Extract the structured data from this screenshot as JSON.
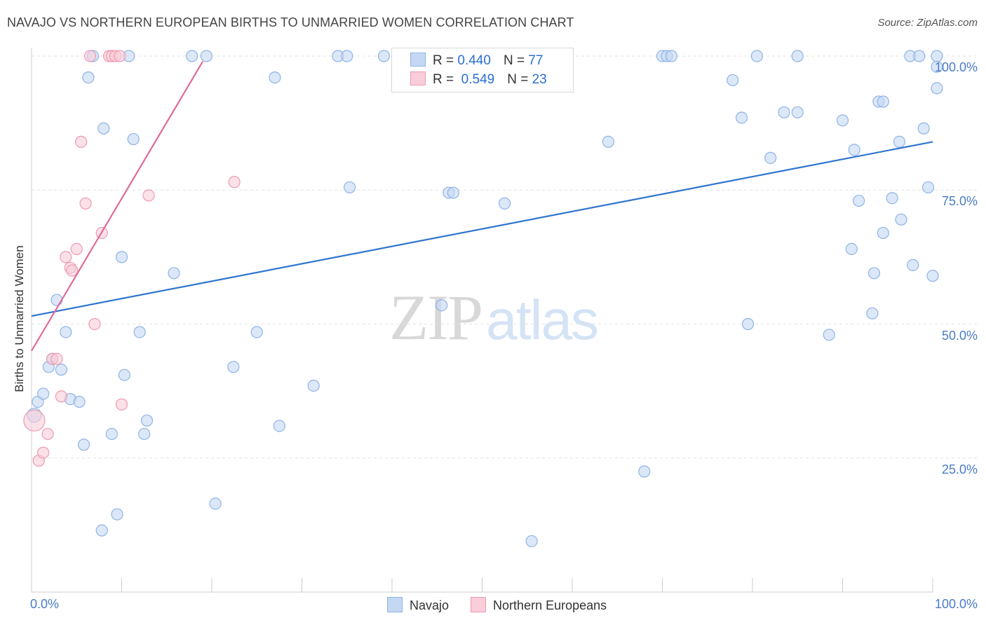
{
  "header": {
    "title": "NAVAJO VS NORTHERN EUROPEAN BIRTHS TO UNMARRIED WOMEN CORRELATION CHART",
    "source": "Source: ZipAtlas.com"
  },
  "watermark": {
    "part1": "ZIP",
    "part2": "atlas"
  },
  "legend": {
    "r_label": "R =",
    "n_label": "N =",
    "series": [
      {
        "name": "Navajo",
        "r": "0.440",
        "n": "77"
      },
      {
        "name": "Northern Europeans",
        "r": "0.549",
        "n": "23"
      }
    ]
  },
  "colors": {
    "navajo_fill": "#c5d8f3",
    "navajo_edge": "#8fb3e6",
    "navajo_line": "#2f74d0",
    "northern_fill": "#f9cdd9",
    "northern_edge": "#ee9ab2",
    "northern_line": "#e0699a",
    "grid": "#e2e2e2",
    "axis_text": "#4a7cc7"
  },
  "chart_data": {
    "type": "scatter",
    "title": "NAVAJO VS NORTHERN EUROPEAN BIRTHS TO UNMARRIED WOMEN CORRELATION CHART",
    "xlabel": "",
    "ylabel": "Births to Unmarried Women",
    "xlim": [
      0,
      100
    ],
    "ylim": [
      0,
      100
    ],
    "x_tick_labels": {
      "min": "0.0%",
      "max": "100.0%"
    },
    "y_ticks": [
      {
        "value": 100,
        "label": "100.0%"
      },
      {
        "value": 75,
        "label": "75.0%"
      },
      {
        "value": 50,
        "label": "50.0%"
      },
      {
        "value": 25,
        "label": "25.0%"
      }
    ],
    "grid": true,
    "legend_position": "top-center",
    "series": [
      {
        "name": "Navajo",
        "r": 0.44,
        "n": 77,
        "trend": {
          "x": [
            0,
            100
          ],
          "y": [
            51.5,
            84
          ]
        },
        "points": [
          [
            0.3,
            33
          ],
          [
            0.7,
            35.5
          ],
          [
            1.3,
            37
          ],
          [
            1.9,
            42
          ],
          [
            2.3,
            43.5
          ],
          [
            2.8,
            54.5
          ],
          [
            3.3,
            41.5
          ],
          [
            3.8,
            48.5
          ],
          [
            4.3,
            36
          ],
          [
            5.3,
            35.5
          ],
          [
            5.8,
            27.5
          ],
          [
            6.3,
            96
          ],
          [
            6.8,
            100
          ],
          [
            7.8,
            11.5
          ],
          [
            8.0,
            86.5
          ],
          [
            8.9,
            29.5
          ],
          [
            9.5,
            14.5
          ],
          [
            10.0,
            62.5
          ],
          [
            10.3,
            40.5
          ],
          [
            10.8,
            100
          ],
          [
            11.3,
            84.5
          ],
          [
            12.0,
            48.5
          ],
          [
            12.8,
            32
          ],
          [
            12.5,
            29.5
          ],
          [
            15.8,
            59.5
          ],
          [
            17.8,
            100
          ],
          [
            19.4,
            100
          ],
          [
            20.4,
            16.5
          ],
          [
            22.4,
            42
          ],
          [
            25.0,
            48.5
          ],
          [
            27.0,
            96
          ],
          [
            27.5,
            31
          ],
          [
            31.3,
            38.5
          ],
          [
            34.0,
            100
          ],
          [
            35.0,
            100
          ],
          [
            35.3,
            75.5
          ],
          [
            39.1,
            100
          ],
          [
            45.5,
            53.5
          ],
          [
            46.3,
            74.5
          ],
          [
            46.8,
            74.5
          ],
          [
            52.5,
            72.5
          ],
          [
            55.5,
            9.5
          ],
          [
            64.0,
            84
          ],
          [
            68.0,
            22.5
          ],
          [
            70.0,
            100
          ],
          [
            70.5,
            100
          ],
          [
            71.0,
            100
          ],
          [
            77.8,
            95.5
          ],
          [
            78.8,
            88.5
          ],
          [
            79.5,
            50
          ],
          [
            80.5,
            100
          ],
          [
            82.0,
            81
          ],
          [
            83.5,
            89.5
          ],
          [
            85.0,
            89.5
          ],
          [
            85.0,
            100
          ],
          [
            88.5,
            48
          ],
          [
            90.0,
            88
          ],
          [
            91.0,
            64
          ],
          [
            91.3,
            82.5
          ],
          [
            91.8,
            73
          ],
          [
            93.3,
            52
          ],
          [
            93.5,
            59.5
          ],
          [
            94.0,
            91.5
          ],
          [
            94.5,
            91.5
          ],
          [
            94.5,
            67
          ],
          [
            95.5,
            73.5
          ],
          [
            96.3,
            84
          ],
          [
            96.5,
            69.5
          ],
          [
            97.5,
            100
          ],
          [
            97.8,
            61
          ],
          [
            98.5,
            100
          ],
          [
            99.0,
            86.5
          ],
          [
            99.5,
            75.5
          ],
          [
            100.0,
            59
          ],
          [
            100.5,
            100
          ],
          [
            101.0,
            98
          ],
          [
            103.0,
            94
          ]
        ]
      },
      {
        "name": "Northern Europeans",
        "r": 0.549,
        "n": 23,
        "trend": {
          "x": [
            0,
            19
          ],
          "y": [
            45,
            99
          ]
        },
        "points": [
          [
            0.3,
            32
          ],
          [
            0.8,
            24.5
          ],
          [
            1.3,
            26
          ],
          [
            1.8,
            29.5
          ],
          [
            2.3,
            43.5
          ],
          [
            2.8,
            43.5
          ],
          [
            3.3,
            36.5
          ],
          [
            3.8,
            62.5
          ],
          [
            4.3,
            60.5
          ],
          [
            4.5,
            60
          ],
          [
            5.0,
            64
          ],
          [
            5.5,
            84
          ],
          [
            6.0,
            72.5
          ],
          [
            6.5,
            100
          ],
          [
            7.0,
            50
          ],
          [
            7.8,
            67
          ],
          [
            8.6,
            100
          ],
          [
            8.9,
            100
          ],
          [
            9.3,
            100
          ],
          [
            9.8,
            100
          ],
          [
            10.0,
            35
          ],
          [
            13.0,
            74
          ],
          [
            22.5,
            76.5
          ]
        ]
      }
    ]
  }
}
